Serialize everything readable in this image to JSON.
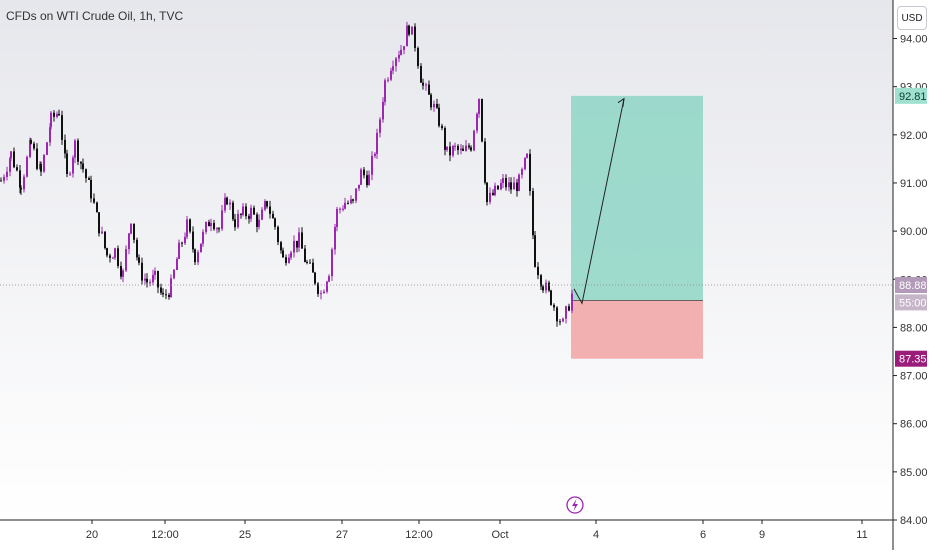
{
  "header": {
    "title": "CFDs on WTI Crude Oil, 1h, TVC",
    "currency": "USD"
  },
  "colors": {
    "bull": "#9c27b0",
    "bear": "#111111",
    "target_zone": "#8ed6c6",
    "stop_zone": "#f2a3a3",
    "target_label_bg": "#9fe0cf",
    "stop_label_bg": "#9b1d7a",
    "current_label_bg": "#b39ab8",
    "timer_label_bg": "#c6b4c8",
    "event_icon": "#9c27b0"
  },
  "chart_data": {
    "type": "candlestick",
    "title": "CFDs on WTI Crude Oil, 1h, TVC",
    "ylim": [
      84.0,
      94.8
    ],
    "y_ticks": [
      "94.00",
      "93.00",
      "92.00",
      "91.00",
      "90.00",
      "89.00",
      "88.00",
      "87.00",
      "86.00",
      "85.00",
      "84.00"
    ],
    "x_ticks": [
      "20",
      "12:00",
      "25",
      "27",
      "12:00",
      "Oct",
      "4",
      "6",
      "9",
      "11"
    ],
    "close_path": [
      [
        0,
        91.05
      ],
      [
        10,
        91.6
      ],
      [
        20,
        91.0
      ],
      [
        30,
        91.8
      ],
      [
        40,
        91.2
      ],
      [
        50,
        92.3
      ],
      [
        58,
        92.5
      ],
      [
        66,
        91.1
      ],
      [
        74,
        91.8
      ],
      [
        82,
        91.3
      ],
      [
        90,
        90.8
      ],
      [
        98,
        90.1
      ],
      [
        106,
        89.5
      ],
      [
        114,
        89.6
      ],
      [
        122,
        89.1
      ],
      [
        130,
        90.3
      ],
      [
        138,
        89.2
      ],
      [
        146,
        88.95
      ],
      [
        154,
        89.0
      ],
      [
        162,
        88.6
      ],
      [
        170,
        88.85
      ],
      [
        178,
        89.6
      ],
      [
        186,
        90.1
      ],
      [
        194,
        89.5
      ],
      [
        202,
        89.9
      ],
      [
        210,
        90.3
      ],
      [
        218,
        90.05
      ],
      [
        226,
        90.7
      ],
      [
        234,
        90.2
      ],
      [
        242,
        90.35
      ],
      [
        250,
        90.4
      ],
      [
        258,
        90.15
      ],
      [
        266,
        90.6
      ],
      [
        274,
        90.1
      ],
      [
        282,
        89.4
      ],
      [
        290,
        89.7
      ],
      [
        298,
        89.8
      ],
      [
        306,
        89.3
      ],
      [
        314,
        89.0
      ],
      [
        320,
        88.7
      ],
      [
        328,
        89.2
      ],
      [
        336,
        90.4
      ],
      [
        344,
        90.6
      ],
      [
        352,
        90.55
      ],
      [
        360,
        91.2
      ],
      [
        368,
        91.1
      ],
      [
        376,
        91.9
      ],
      [
        384,
        93.1
      ],
      [
        392,
        93.6
      ],
      [
        400,
        93.8
      ],
      [
        408,
        94.25
      ],
      [
        414,
        93.9
      ],
      [
        422,
        93.0
      ],
      [
        430,
        92.7
      ],
      [
        438,
        92.3
      ],
      [
        446,
        91.6
      ],
      [
        454,
        91.7
      ],
      [
        462,
        91.6
      ],
      [
        470,
        91.8
      ],
      [
        478,
        92.8
      ],
      [
        486,
        90.6
      ],
      [
        494,
        90.8
      ],
      [
        502,
        91.0
      ],
      [
        510,
        90.9
      ],
      [
        518,
        91.0
      ],
      [
        526,
        91.5
      ],
      [
        534,
        89.4
      ],
      [
        542,
        88.9
      ],
      [
        550,
        88.6
      ],
      [
        556,
        88.3
      ],
      [
        562,
        88.05
      ],
      [
        568,
        88.5
      ],
      [
        574,
        88.85
      ]
    ],
    "current_price": "88.88",
    "bar_countdown": "55:00",
    "position": {
      "type": "long",
      "entry": 88.56,
      "target": 92.81,
      "stop": 87.35,
      "target_label": "92.81",
      "stop_label": "87.35"
    },
    "projection_path": [
      [
        574,
        88.8
      ],
      [
        582,
        88.5
      ],
      [
        624,
        92.75
      ]
    ]
  }
}
